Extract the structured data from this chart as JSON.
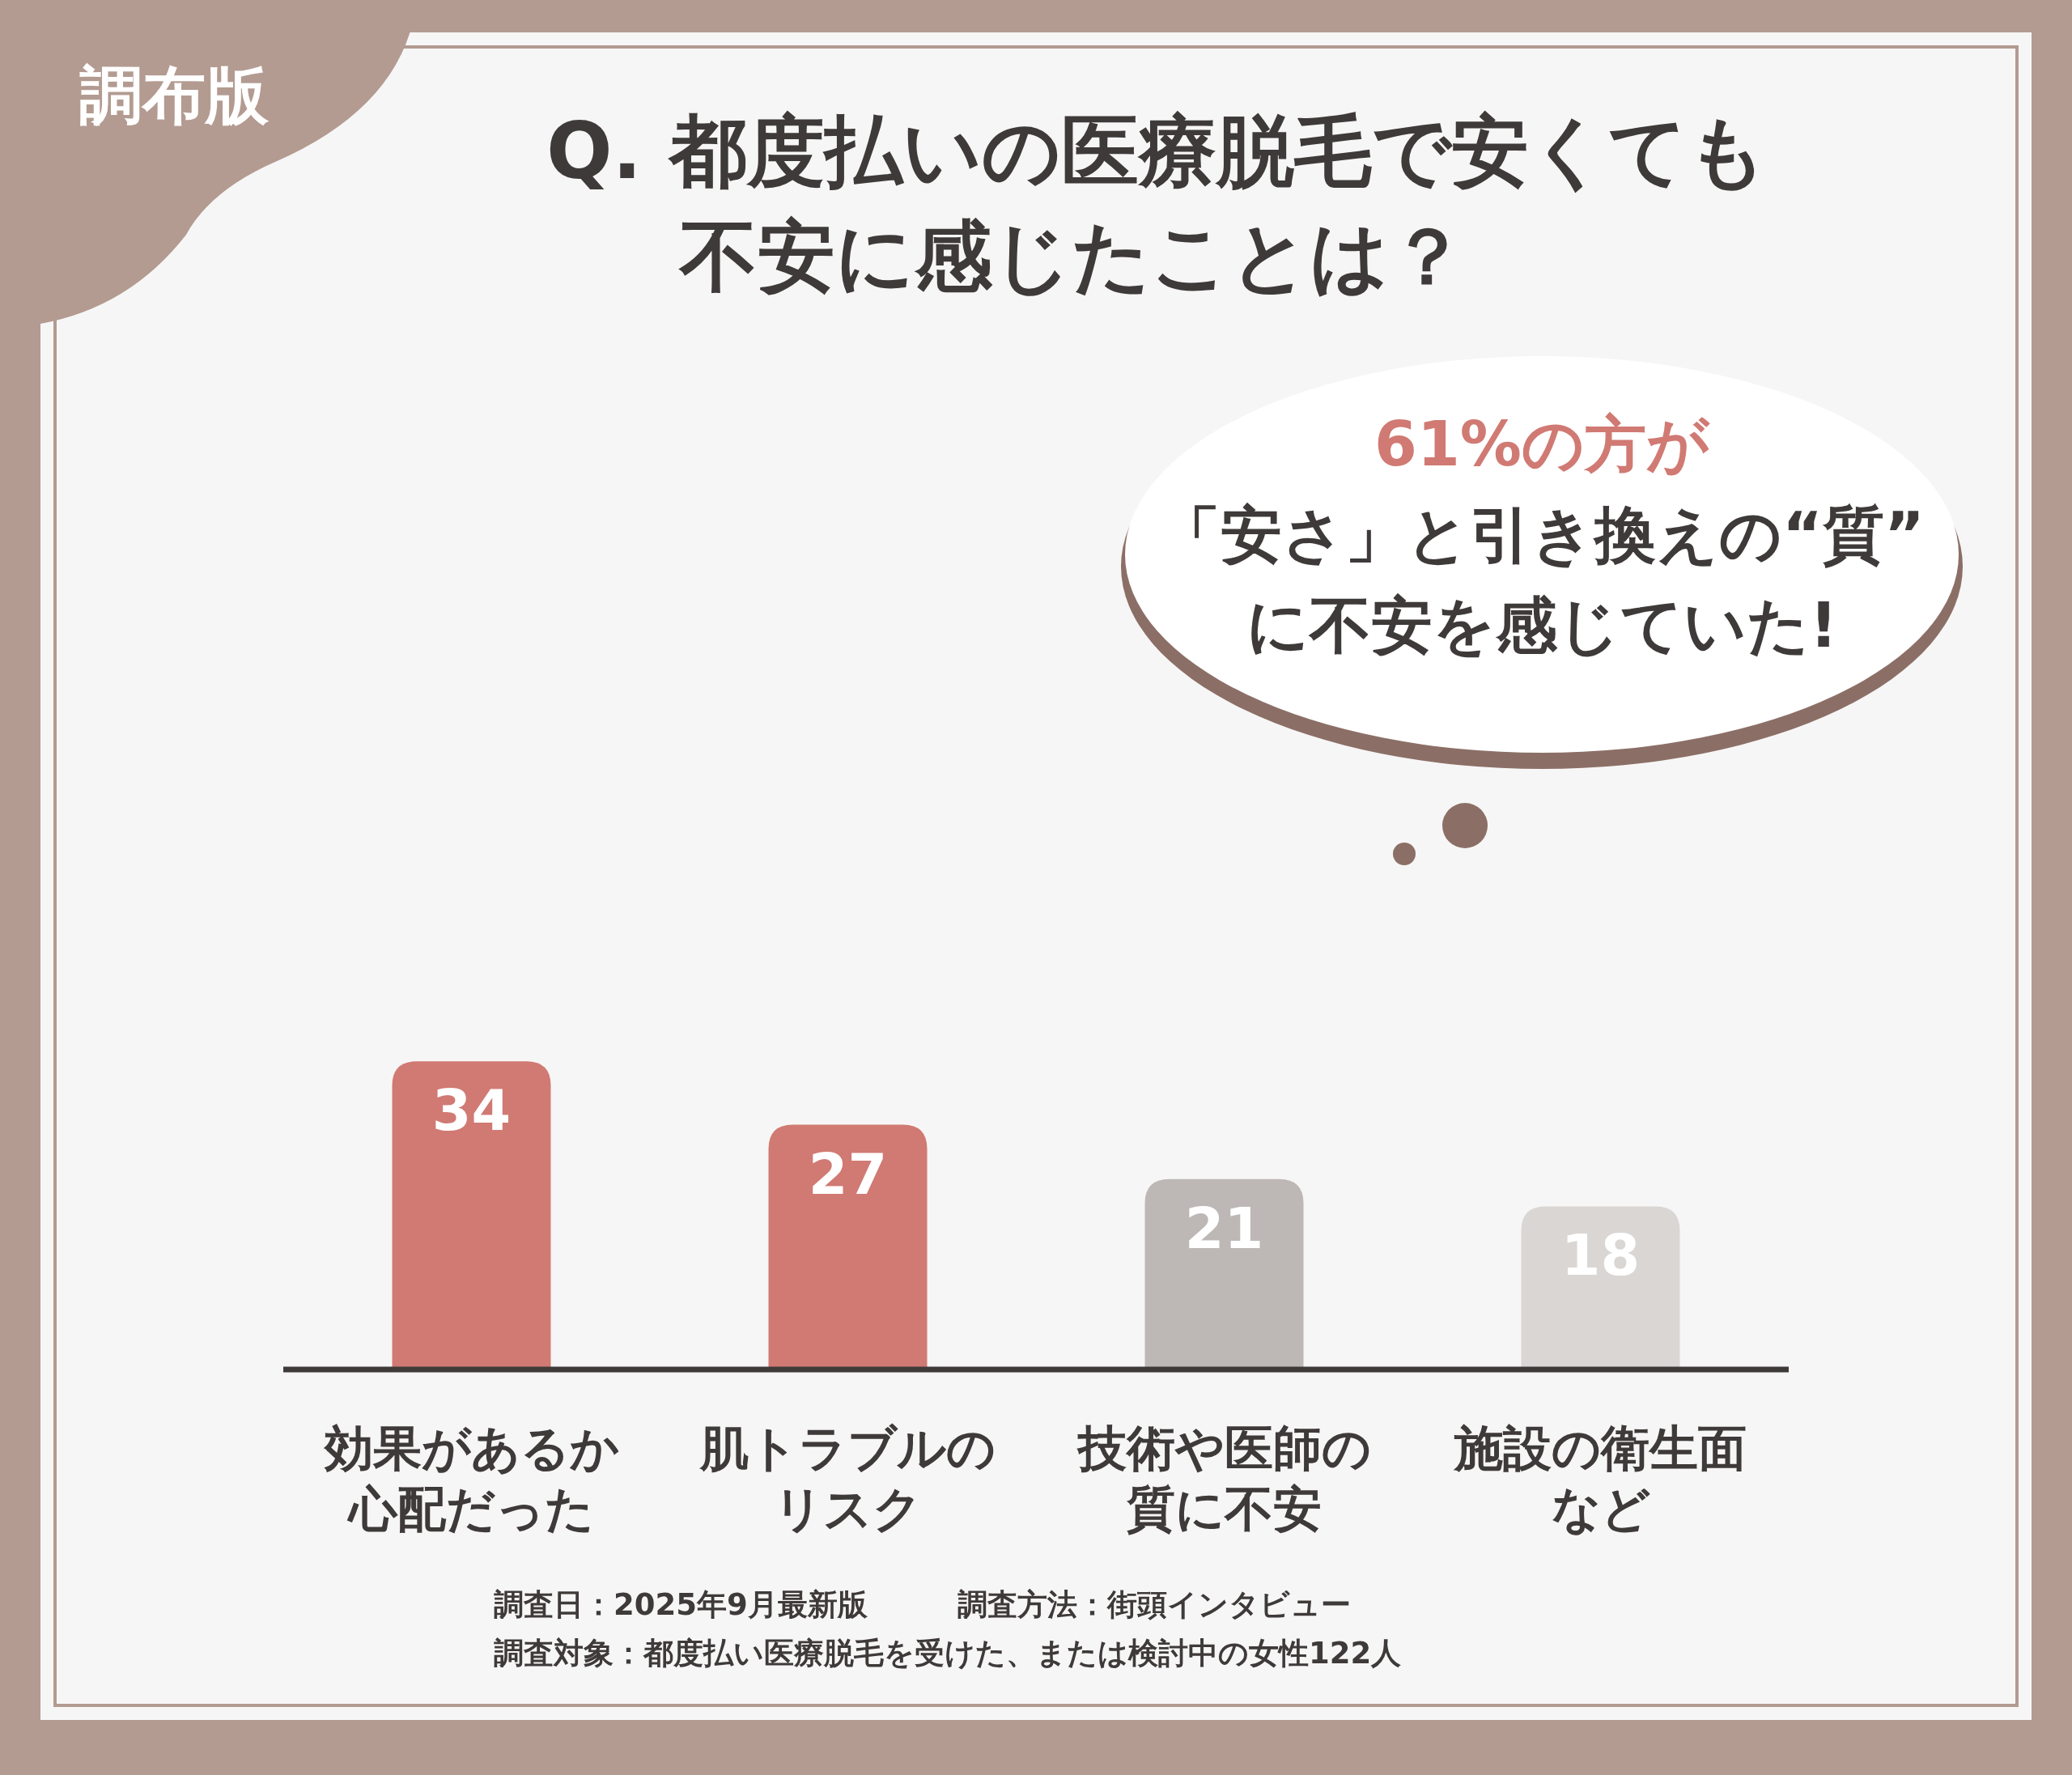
{
  "chart_data": {
    "type": "bar",
    "title": "Q. 都度払いの医療脱毛で安くても不安に感じたことは？",
    "categories": [
      "効果があるか心配だった",
      "肌トラブルのリスク",
      "技術や医師の質に不安",
      "施設の衛生面など"
    ],
    "values": [
      34,
      27,
      21,
      18
    ],
    "colors": [
      "#d07a73",
      "#d07a73",
      "#bdb8b6",
      "#d9d6d4"
    ],
    "data_labels": true,
    "annotations": [
      "調布版",
      "61%の方が",
      "「安さ」と引き換えの“質”",
      "に不安を感じていた!",
      "調査日：2025年9月最新版　　　調査方法：街頭インタビュー",
      "調査対象：都度払い医療脱毛を受けた、または検討中の女性122人"
    ]
  }
}
